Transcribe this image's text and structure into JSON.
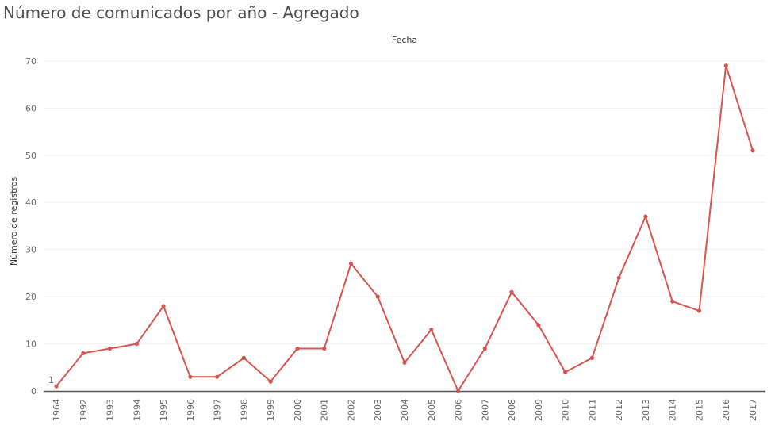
{
  "title": "Número de comunicados por año - Agregado",
  "chart_data": {
    "type": "line",
    "title": "Número de comunicados por año - Agregado",
    "xlabel": "Fecha",
    "ylabel": "Número de registros",
    "categories": [
      "1964",
      "1992",
      "1993",
      "1994",
      "1995",
      "1996",
      "1997",
      "1998",
      "1999",
      "2000",
      "2001",
      "2002",
      "2003",
      "2004",
      "2005",
      "2006",
      "2007",
      "2008",
      "2009",
      "2010",
      "2011",
      "2012",
      "2013",
      "2014",
      "2015",
      "2016",
      "2017"
    ],
    "values": [
      1,
      8,
      9,
      10,
      18,
      3,
      3,
      7,
      2,
      9,
      9,
      27,
      20,
      6,
      13,
      0,
      9,
      21,
      14,
      4,
      7,
      24,
      37,
      19,
      17,
      69,
      51
    ],
    "annotations": [
      {
        "category": "1964",
        "text": "1"
      }
    ],
    "ylim": [
      0,
      72
    ],
    "yticks": [
      0,
      10,
      20,
      30,
      40,
      50,
      60,
      70
    ],
    "grid": true,
    "legend": "none",
    "line_color": "#d9534f",
    "grid_color": "#f0f0f0",
    "axis_color": "#555555"
  }
}
